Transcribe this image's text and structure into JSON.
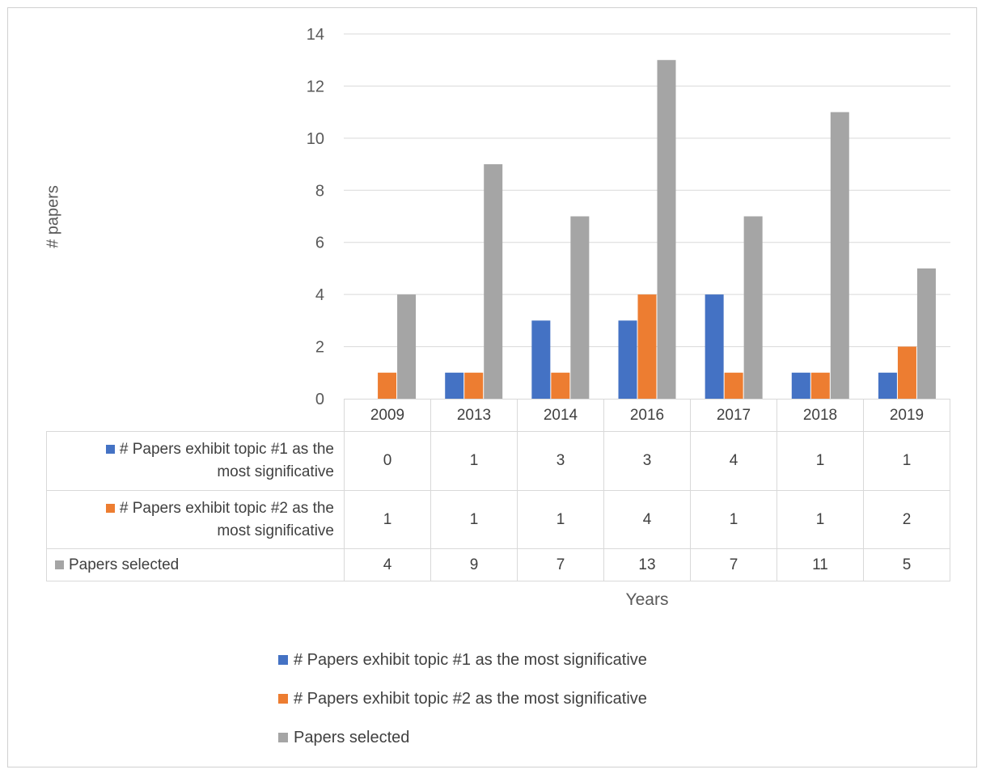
{
  "chart_data": {
    "type": "bar",
    "categories": [
      "2009",
      "2013",
      "2014",
      "2016",
      "2017",
      "2018",
      "2019"
    ],
    "series": [
      {
        "name": "# Papers exhibit topic #1 as the most significative",
        "color": "#4472c4",
        "values": [
          0,
          1,
          3,
          3,
          4,
          1,
          1
        ]
      },
      {
        "name": "# Papers exhibit topic #2 as the most significative",
        "color": "#ed7d31",
        "values": [
          1,
          1,
          1,
          4,
          1,
          1,
          2
        ]
      },
      {
        "name": "Papers selected",
        "color": "#a5a5a5",
        "values": [
          4,
          9,
          7,
          13,
          7,
          11,
          5
        ]
      }
    ],
    "ylim": [
      0,
      14
    ],
    "yticks": [
      "0",
      "2",
      "4",
      "6",
      "8",
      "10",
      "12",
      "14"
    ],
    "ylabel": "# papers",
    "xlabel": "Years",
    "table": {
      "rows": [
        {
          "label_line1": "# Papers exhibit topic #1 as the",
          "label_line2": "most significative",
          "values": [
            "0",
            "1",
            "3",
            "3",
            "4",
            "1",
            "1"
          ]
        },
        {
          "label_line1": "# Papers exhibit topic #2 as the",
          "label_line2": "most significative",
          "values": [
            "1",
            "1",
            "1",
            "4",
            "1",
            "1",
            "2"
          ]
        },
        {
          "label_line1": "Papers selected",
          "label_line2": "",
          "values": [
            "4",
            "9",
            "7",
            "13",
            "7",
            "11",
            "5"
          ]
        }
      ]
    },
    "legend": [
      "# Papers exhibit topic #1 as the most significative",
      "# Papers exhibit topic #2 as the most significative",
      "Papers selected"
    ],
    "grid": true
  }
}
